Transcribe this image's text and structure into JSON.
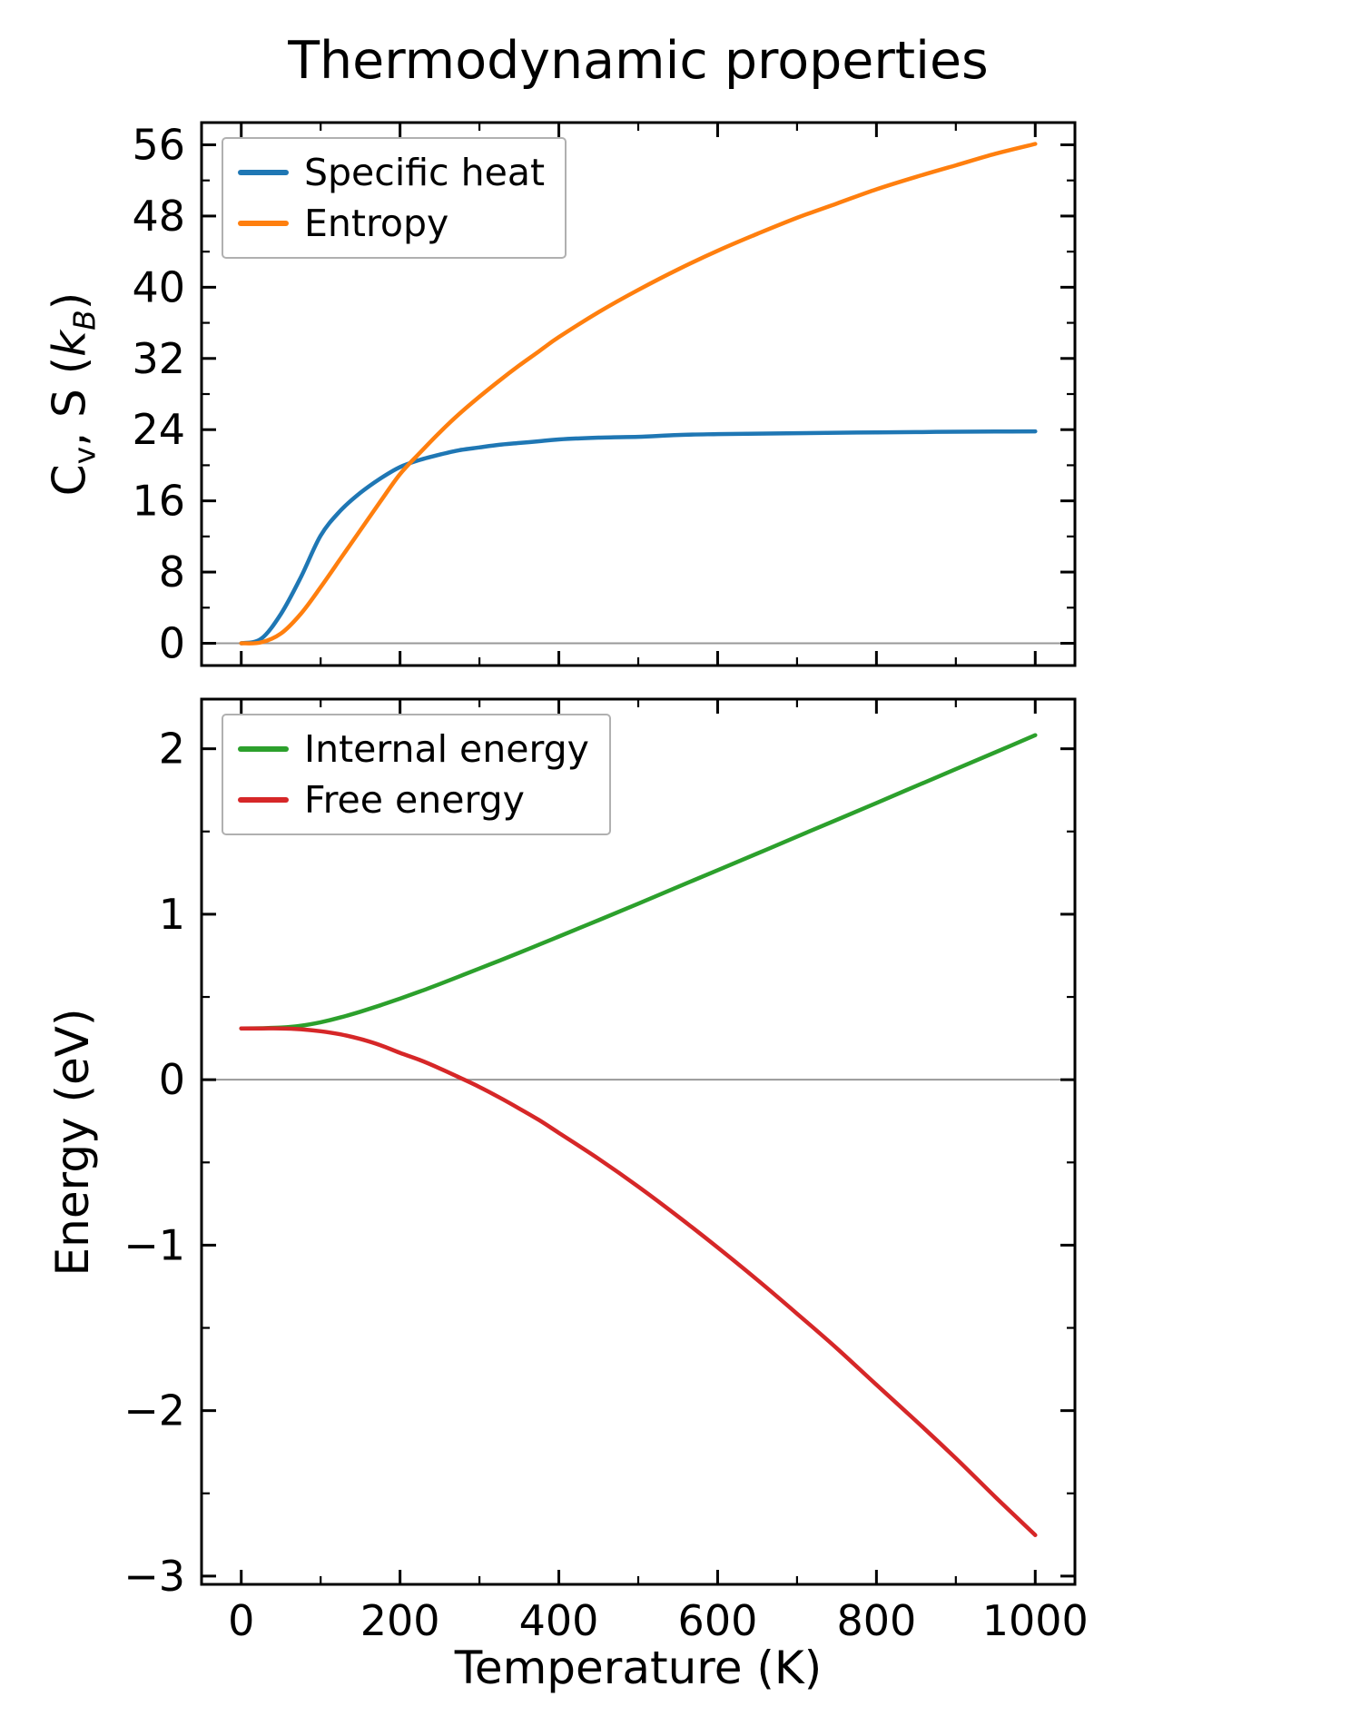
{
  "title": "Thermodynamic properties",
  "axes_style": {
    "frame_color": "#000000",
    "zero_line_color": "#999999",
    "tick_color": "#000000"
  },
  "chart_data": [
    {
      "type": "line",
      "panel": "top",
      "ylabel_segments": [
        {
          "t": "C"
        },
        {
          "t": "v",
          "sub": true
        },
        {
          "t": ", S ("
        },
        {
          "t": "k",
          "italic": true
        },
        {
          "t": "B",
          "sub": true,
          "italic": true
        },
        {
          "t": ")"
        }
      ],
      "x": [
        0,
        25,
        50,
        75,
        100,
        125,
        150,
        175,
        200,
        225,
        250,
        275,
        300,
        325,
        350,
        375,
        400,
        450,
        500,
        550,
        600,
        650,
        700,
        750,
        800,
        850,
        900,
        950,
        1000
      ],
      "series": [
        {
          "name": "Specific heat",
          "color": "#1f77b4",
          "values": [
            0,
            0.5,
            3.3,
            7.4,
            12.1,
            14.9,
            16.9,
            18.5,
            19.8,
            20.6,
            21.2,
            21.7,
            22.0,
            22.3,
            22.5,
            22.7,
            22.9,
            23.1,
            23.2,
            23.4,
            23.5,
            23.55,
            23.6,
            23.65,
            23.7,
            23.73,
            23.77,
            23.79,
            23.81
          ]
        },
        {
          "name": "Entropy",
          "color": "#ff7f0e",
          "values": [
            0,
            0.1,
            1.1,
            3.3,
            6.3,
            9.5,
            12.7,
            15.9,
            19.0,
            21.4,
            23.7,
            25.8,
            27.7,
            29.5,
            31.2,
            32.8,
            34.4,
            37.2,
            39.7,
            42.0,
            44.1,
            46.0,
            47.8,
            49.4,
            51.0,
            52.4,
            53.7,
            55.0,
            56.1
          ]
        }
      ],
      "xlim": [
        -50,
        1050
      ],
      "ylim": [
        -2.5,
        58.5
      ],
      "xticks": [
        0,
        200,
        400,
        600,
        800,
        1000
      ],
      "yticks": [
        0,
        8,
        16,
        24,
        32,
        40,
        48,
        56
      ],
      "x_minor_step": 100,
      "y_minor_step": 4,
      "grid": false,
      "zero_line": true,
      "legend_position": "upper left"
    },
    {
      "type": "line",
      "panel": "bottom",
      "ylabel_segments": [
        {
          "t": "Energy (eV)"
        }
      ],
      "xlabel": "Temperature (K)",
      "x": [
        0,
        25,
        50,
        75,
        100,
        125,
        150,
        175,
        200,
        225,
        250,
        275,
        300,
        325,
        350,
        375,
        400,
        450,
        500,
        550,
        600,
        650,
        700,
        750,
        800,
        850,
        900,
        950,
        1000
      ],
      "series": [
        {
          "name": "Internal energy",
          "color": "#2ca02c",
          "values": [
            0.31,
            0.311,
            0.315,
            0.326,
            0.347,
            0.376,
            0.411,
            0.449,
            0.49,
            0.533,
            0.578,
            0.625,
            0.672,
            0.719,
            0.767,
            0.816,
            0.865,
            0.964,
            1.064,
            1.165,
            1.266,
            1.367,
            1.469,
            1.57,
            1.672,
            1.775,
            1.877,
            1.979,
            2.082
          ]
        },
        {
          "name": "Free energy",
          "color": "#d62728",
          "values": [
            0.31,
            0.31,
            0.31,
            0.305,
            0.293,
            0.274,
            0.246,
            0.209,
            0.162,
            0.119,
            0.068,
            0.013,
            -0.044,
            -0.107,
            -0.174,
            -0.244,
            -0.321,
            -0.478,
            -0.646,
            -0.826,
            -1.014,
            -1.21,
            -1.414,
            -1.623,
            -1.844,
            -2.063,
            -2.288,
            -2.523,
            -2.752
          ]
        }
      ],
      "xlim": [
        -50,
        1050
      ],
      "ylim": [
        -3.05,
        2.3
      ],
      "xticks": [
        0,
        200,
        400,
        600,
        800,
        1000
      ],
      "yticks": [
        2,
        1,
        0,
        -1,
        -2,
        -3
      ],
      "x_minor_step": 100,
      "y_minor_step": 0.5,
      "grid": false,
      "zero_line": true,
      "legend_position": "upper left"
    }
  ]
}
